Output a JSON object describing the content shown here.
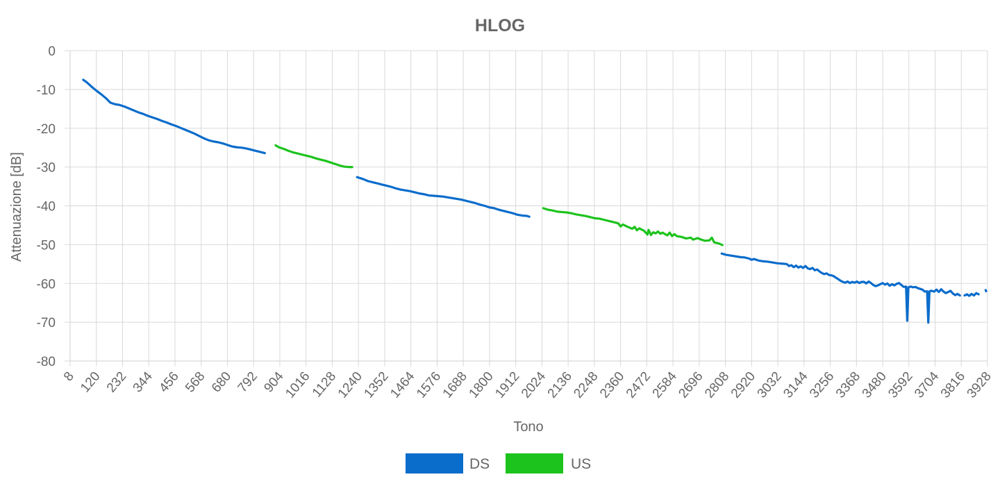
{
  "chart_data": {
    "type": "line",
    "title": "HLOG",
    "xlabel": "Tono",
    "ylabel": "Attenuazione [dB]",
    "xlim": [
      8,
      3928
    ],
    "ylim": [
      -80,
      0
    ],
    "x_ticks": [
      "8",
      "120",
      "232",
      "344",
      "456",
      "568",
      "680",
      "792",
      "904",
      "1016",
      "1128",
      "1240",
      "1352",
      "1464",
      "1576",
      "1688",
      "1800",
      "1912",
      "2024",
      "2136",
      "2248",
      "2360",
      "2472",
      "2584",
      "2696",
      "2808",
      "2920",
      "3032",
      "3144",
      "3256",
      "3368",
      "3480",
      "3592",
      "3704",
      "3816",
      "3928"
    ],
    "y_ticks": [
      "0",
      "-10",
      "-20",
      "-30",
      "-40",
      "-50",
      "-60",
      "-70",
      "-80"
    ],
    "grid": true,
    "legend": "bottom",
    "series": [
      {
        "name": "DS",
        "color": "#0a6ccb",
        "segments": [
          [
            [
              64,
              -7.5
            ],
            [
              80,
              -8.2
            ],
            [
              100,
              -9.3
            ],
            [
              120,
              -10.3
            ],
            [
              140,
              -11.2
            ],
            [
              160,
              -12.2
            ],
            [
              180,
              -13.4
            ],
            [
              200,
              -13.8
            ],
            [
              220,
              -14.0
            ],
            [
              240,
              -14.4
            ],
            [
              260,
              -14.9
            ],
            [
              280,
              -15.4
            ],
            [
              300,
              -15.9
            ],
            [
              320,
              -16.3
            ],
            [
              340,
              -16.8
            ],
            [
              360,
              -17.2
            ],
            [
              380,
              -17.6
            ],
            [
              400,
              -18.1
            ],
            [
              420,
              -18.5
            ],
            [
              440,
              -19.0
            ],
            [
              460,
              -19.4
            ],
            [
              480,
              -19.9
            ],
            [
              500,
              -20.4
            ],
            [
              520,
              -20.9
            ],
            [
              540,
              -21.4
            ],
            [
              560,
              -22.0
            ],
            [
              580,
              -22.6
            ],
            [
              600,
              -23.1
            ],
            [
              620,
              -23.4
            ],
            [
              640,
              -23.6
            ],
            [
              660,
              -23.9
            ],
            [
              680,
              -24.3
            ],
            [
              700,
              -24.7
            ],
            [
              720,
              -24.9
            ],
            [
              740,
              -25.0
            ],
            [
              760,
              -25.2
            ],
            [
              780,
              -25.5
            ],
            [
              800,
              -25.8
            ],
            [
              820,
              -26.1
            ],
            [
              840,
              -26.4
            ]
          ],
          [
            [
              1234,
              -32.6
            ],
            [
              1260,
              -33.1
            ],
            [
              1280,
              -33.6
            ],
            [
              1300,
              -33.9
            ],
            [
              1320,
              -34.2
            ],
            [
              1340,
              -34.5
            ],
            [
              1360,
              -34.8
            ],
            [
              1380,
              -35.1
            ],
            [
              1400,
              -35.5
            ],
            [
              1420,
              -35.8
            ],
            [
              1440,
              -36.0
            ],
            [
              1460,
              -36.2
            ],
            [
              1480,
              -36.5
            ],
            [
              1500,
              -36.8
            ],
            [
              1520,
              -37.0
            ],
            [
              1540,
              -37.3
            ],
            [
              1560,
              -37.4
            ],
            [
              1580,
              -37.5
            ],
            [
              1600,
              -37.6
            ],
            [
              1620,
              -37.8
            ],
            [
              1640,
              -38.0
            ],
            [
              1660,
              -38.2
            ],
            [
              1680,
              -38.4
            ],
            [
              1700,
              -38.7
            ],
            [
              1720,
              -39.0
            ],
            [
              1740,
              -39.3
            ],
            [
              1760,
              -39.7
            ],
            [
              1780,
              -40.0
            ],
            [
              1800,
              -40.4
            ],
            [
              1820,
              -40.6
            ],
            [
              1840,
              -41.0
            ],
            [
              1860,
              -41.3
            ],
            [
              1880,
              -41.6
            ],
            [
              1900,
              -41.9
            ],
            [
              1920,
              -42.3
            ],
            [
              1940,
              -42.5
            ],
            [
              1960,
              -42.6
            ],
            [
              1970,
              -42.8
            ]
          ],
          [
            [
              2792,
              -52.3
            ],
            [
              2810,
              -52.6
            ],
            [
              2830,
              -52.8
            ],
            [
              2850,
              -53.0
            ],
            [
              2870,
              -53.2
            ],
            [
              2890,
              -53.3
            ],
            [
              2910,
              -53.6
            ],
            [
              2920,
              -53.9
            ],
            [
              2930,
              -53.7
            ],
            [
              2950,
              -54.1
            ],
            [
              2970,
              -54.3
            ],
            [
              2990,
              -54.4
            ],
            [
              3010,
              -54.6
            ],
            [
              3030,
              -54.8
            ],
            [
              3050,
              -54.9
            ],
            [
              3070,
              -55.0
            ],
            [
              3080,
              -55.5
            ],
            [
              3090,
              -55.3
            ],
            [
              3100,
              -55.8
            ],
            [
              3110,
              -55.4
            ],
            [
              3120,
              -55.9
            ],
            [
              3130,
              -55.6
            ],
            [
              3140,
              -56.0
            ],
            [
              3150,
              -55.5
            ],
            [
              3160,
              -56.1
            ],
            [
              3170,
              -56.3
            ],
            [
              3180,
              -56.0
            ],
            [
              3190,
              -56.6
            ],
            [
              3200,
              -56.4
            ],
            [
              3210,
              -56.9
            ],
            [
              3220,
              -57.3
            ],
            [
              3230,
              -57.6
            ],
            [
              3240,
              -57.4
            ],
            [
              3250,
              -57.8
            ],
            [
              3260,
              -57.9
            ],
            [
              3270,
              -58.1
            ],
            [
              3280,
              -58.5
            ],
            [
              3290,
              -58.9
            ],
            [
              3300,
              -59.3
            ],
            [
              3310,
              -59.6
            ],
            [
              3320,
              -59.8
            ],
            [
              3330,
              -59.5
            ],
            [
              3340,
              -59.9
            ],
            [
              3350,
              -59.6
            ],
            [
              3360,
              -59.8
            ],
            [
              3370,
              -59.5
            ],
            [
              3380,
              -59.9
            ],
            [
              3390,
              -59.6
            ],
            [
              3400,
              -59.6
            ],
            [
              3410,
              -60.0
            ],
            [
              3420,
              -59.5
            ],
            [
              3430,
              -59.9
            ],
            [
              3440,
              -60.4
            ],
            [
              3450,
              -60.7
            ],
            [
              3460,
              -60.5
            ],
            [
              3470,
              -60.2
            ],
            [
              3480,
              -59.9
            ],
            [
              3490,
              -60.3
            ],
            [
              3500,
              -60.0
            ],
            [
              3510,
              -60.6
            ],
            [
              3520,
              -60.2
            ],
            [
              3530,
              -60.5
            ],
            [
              3540,
              -60.1
            ],
            [
              3550,
              -59.9
            ],
            [
              3560,
              -60.4
            ],
            [
              3570,
              -60.9
            ],
            [
              3580,
              -60.8
            ],
            [
              3585,
              -69.6
            ],
            [
              3590,
              -61.0
            ],
            [
              3600,
              -60.8
            ],
            [
              3610,
              -61.0
            ],
            [
              3620,
              -60.9
            ],
            [
              3630,
              -61.2
            ],
            [
              3640,
              -61.4
            ],
            [
              3650,
              -61.6
            ],
            [
              3660,
              -62.1
            ],
            [
              3670,
              -62.0
            ],
            [
              3675,
              -70.1
            ],
            [
              3680,
              -62.0
            ],
            [
              3690,
              -61.9
            ],
            [
              3700,
              -62.1
            ],
            [
              3710,
              -61.6
            ],
            [
              3720,
              -62.2
            ],
            [
              3730,
              -61.5
            ],
            [
              3740,
              -62.1
            ],
            [
              3750,
              -62.5
            ],
            [
              3760,
              -62.2
            ],
            [
              3770,
              -61.9
            ],
            [
              3780,
              -62.6
            ],
            [
              3790,
              -63.0
            ],
            [
              3800,
              -62.7
            ],
            [
              3810,
              -63.1
            ]
          ],
          [
            [
              3830,
              -63.1
            ],
            [
              3840,
              -62.8
            ],
            [
              3850,
              -63.2
            ],
            [
              3860,
              -62.7
            ],
            [
              3870,
              -63.1
            ],
            [
              3880,
              -62.5
            ],
            [
              3890,
              -62.8
            ]
          ],
          [
            [
              3920,
              -61.7
            ],
            [
              3922,
              -62.0
            ]
          ]
        ]
      },
      {
        "name": "US",
        "color": "#1dc31d",
        "segments": [
          [
            [
              886,
              -24.4
            ],
            [
              900,
              -24.9
            ],
            [
              920,
              -25.3
            ],
            [
              940,
              -25.8
            ],
            [
              960,
              -26.2
            ],
            [
              980,
              -26.5
            ],
            [
              1000,
              -26.8
            ],
            [
              1020,
              -27.1
            ],
            [
              1040,
              -27.4
            ],
            [
              1060,
              -27.8
            ],
            [
              1080,
              -28.1
            ],
            [
              1100,
              -28.4
            ],
            [
              1120,
              -28.8
            ],
            [
              1140,
              -29.2
            ],
            [
              1160,
              -29.6
            ],
            [
              1180,
              -29.9
            ],
            [
              1200,
              -30.0
            ],
            [
              1213,
              -30.0
            ]
          ],
          [
            [
              2030,
              -40.6
            ],
            [
              2050,
              -41.0
            ],
            [
              2070,
              -41.2
            ],
            [
              2090,
              -41.5
            ],
            [
              2110,
              -41.6
            ],
            [
              2130,
              -41.7
            ],
            [
              2150,
              -41.9
            ],
            [
              2170,
              -42.2
            ],
            [
              2190,
              -42.4
            ],
            [
              2210,
              -42.6
            ],
            [
              2230,
              -42.9
            ],
            [
              2250,
              -43.2
            ],
            [
              2270,
              -43.3
            ],
            [
              2290,
              -43.6
            ],
            [
              2310,
              -43.9
            ],
            [
              2330,
              -44.2
            ],
            [
              2350,
              -44.5
            ],
            [
              2360,
              -45.3
            ],
            [
              2370,
              -44.8
            ],
            [
              2390,
              -45.4
            ],
            [
              2410,
              -45.9
            ],
            [
              2420,
              -45.4
            ],
            [
              2430,
              -46.3
            ],
            [
              2440,
              -45.8
            ],
            [
              2460,
              -46.4
            ],
            [
              2475,
              -47.4
            ],
            [
              2480,
              -46.2
            ],
            [
              2490,
              -47.5
            ],
            [
              2500,
              -46.8
            ],
            [
              2510,
              -47.1
            ],
            [
              2520,
              -46.6
            ],
            [
              2530,
              -47.2
            ],
            [
              2540,
              -46.9
            ],
            [
              2550,
              -47.3
            ],
            [
              2560,
              -47.6
            ],
            [
              2570,
              -46.9
            ],
            [
              2580,
              -47.8
            ],
            [
              2590,
              -47.3
            ],
            [
              2600,
              -47.8
            ],
            [
              2620,
              -48.0
            ],
            [
              2640,
              -48.4
            ],
            [
              2660,
              -48.2
            ],
            [
              2670,
              -48.7
            ],
            [
              2680,
              -48.5
            ],
            [
              2690,
              -48.3
            ],
            [
              2700,
              -48.6
            ],
            [
              2720,
              -49.0
            ],
            [
              2740,
              -48.9
            ],
            [
              2750,
              -48.2
            ],
            [
              2760,
              -49.4
            ],
            [
              2780,
              -49.7
            ],
            [
              2795,
              -50.1
            ]
          ]
        ]
      }
    ]
  }
}
